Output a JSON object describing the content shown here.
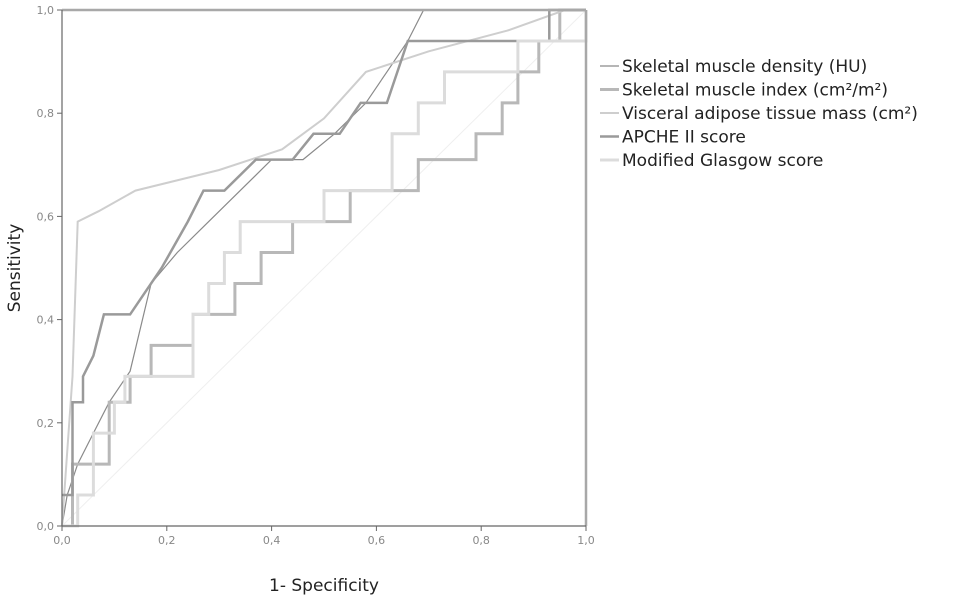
{
  "chart_data": {
    "type": "line",
    "xlabel": "1- Specificity",
    "ylabel": "Sensitivity",
    "xlim": [
      0,
      1
    ],
    "ylim": [
      0,
      1
    ],
    "x_ticks": [
      "0,0",
      "0,2",
      "0,4",
      "0,6",
      "0,8",
      "1,0"
    ],
    "y_ticks": [
      "0,0",
      "0,2",
      "0,4",
      "0,6",
      "0,8",
      "1,0"
    ],
    "grid": false,
    "legend_position": "right",
    "series": [
      {
        "name": "Skeletal muscle density (HU)",
        "color": "#8a8a8a",
        "stroke": 1.2,
        "points": [
          [
            0,
            0
          ],
          [
            0.01,
            0.06
          ],
          [
            0.03,
            0.12
          ],
          [
            0.06,
            0.18
          ],
          [
            0.09,
            0.24
          ],
          [
            0.13,
            0.3
          ],
          [
            0.17,
            0.47
          ],
          [
            0.22,
            0.53
          ],
          [
            0.28,
            0.59
          ],
          [
            0.34,
            0.65
          ],
          [
            0.4,
            0.71
          ],
          [
            0.46,
            0.71
          ],
          [
            0.52,
            0.76
          ],
          [
            0.58,
            0.82
          ],
          [
            0.62,
            0.88
          ],
          [
            0.66,
            0.94
          ],
          [
            0.69,
            1.0
          ],
          [
            1.0,
            1.0
          ]
        ]
      },
      {
        "name": "Skeletal muscle index (cm²/m²)",
        "color": "#b8b8b8",
        "stroke": 3,
        "points": [
          [
            0,
            0
          ],
          [
            0.02,
            0
          ],
          [
            0.02,
            0.12
          ],
          [
            0.09,
            0.12
          ],
          [
            0.09,
            0.24
          ],
          [
            0.13,
            0.24
          ],
          [
            0.13,
            0.29
          ],
          [
            0.17,
            0.29
          ],
          [
            0.17,
            0.35
          ],
          [
            0.25,
            0.35
          ],
          [
            0.25,
            0.41
          ],
          [
            0.33,
            0.41
          ],
          [
            0.33,
            0.47
          ],
          [
            0.38,
            0.47
          ],
          [
            0.38,
            0.53
          ],
          [
            0.44,
            0.53
          ],
          [
            0.44,
            0.59
          ],
          [
            0.55,
            0.59
          ],
          [
            0.55,
            0.65
          ],
          [
            0.68,
            0.65
          ],
          [
            0.68,
            0.71
          ],
          [
            0.79,
            0.71
          ],
          [
            0.79,
            0.76
          ],
          [
            0.84,
            0.76
          ],
          [
            0.84,
            0.82
          ],
          [
            0.87,
            0.82
          ],
          [
            0.87,
            0.88
          ],
          [
            0.91,
            0.88
          ],
          [
            0.91,
            0.94
          ],
          [
            0.95,
            0.94
          ],
          [
            0.95,
            1.0
          ],
          [
            1.0,
            1.0
          ]
        ]
      },
      {
        "name": "Visceral adipose tissue mass (cm²)",
        "color": "#cecece",
        "stroke": 2,
        "points": [
          [
            0,
            0
          ],
          [
            0.02,
            0.29
          ],
          [
            0.03,
            0.59
          ],
          [
            0.07,
            0.61
          ],
          [
            0.14,
            0.65
          ],
          [
            0.3,
            0.69
          ],
          [
            0.42,
            0.73
          ],
          [
            0.5,
            0.79
          ],
          [
            0.58,
            0.88
          ],
          [
            0.7,
            0.92
          ],
          [
            0.85,
            0.96
          ],
          [
            0.96,
            1.0
          ],
          [
            1.0,
            1.0
          ]
        ]
      },
      {
        "name": "APCHE II score",
        "color": "#9a9a9a",
        "stroke": 2.5,
        "points": [
          [
            0,
            0.06
          ],
          [
            0.02,
            0.06
          ],
          [
            0.02,
            0.24
          ],
          [
            0.04,
            0.24
          ],
          [
            0.04,
            0.29
          ],
          [
            0.06,
            0.33
          ],
          [
            0.08,
            0.41
          ],
          [
            0.13,
            0.41
          ],
          [
            0.19,
            0.5
          ],
          [
            0.24,
            0.59
          ],
          [
            0.27,
            0.65
          ],
          [
            0.31,
            0.65
          ],
          [
            0.37,
            0.71
          ],
          [
            0.44,
            0.71
          ],
          [
            0.48,
            0.76
          ],
          [
            0.53,
            0.76
          ],
          [
            0.57,
            0.82
          ],
          [
            0.62,
            0.82
          ],
          [
            0.66,
            0.94
          ],
          [
            0.93,
            0.94
          ],
          [
            0.93,
            1.0
          ],
          [
            1.0,
            1.0
          ]
        ]
      },
      {
        "name": "Modified Glasgow score",
        "color": "#dcdcdc",
        "stroke": 3,
        "points": [
          [
            0,
            0
          ],
          [
            0.03,
            0
          ],
          [
            0.03,
            0.06
          ],
          [
            0.06,
            0.06
          ],
          [
            0.06,
            0.18
          ],
          [
            0.1,
            0.18
          ],
          [
            0.1,
            0.24
          ],
          [
            0.12,
            0.24
          ],
          [
            0.12,
            0.29
          ],
          [
            0.25,
            0.29
          ],
          [
            0.25,
            0.41
          ],
          [
            0.28,
            0.41
          ],
          [
            0.28,
            0.47
          ],
          [
            0.31,
            0.47
          ],
          [
            0.31,
            0.53
          ],
          [
            0.34,
            0.53
          ],
          [
            0.34,
            0.59
          ],
          [
            0.5,
            0.59
          ],
          [
            0.5,
            0.65
          ],
          [
            0.63,
            0.65
          ],
          [
            0.63,
            0.76
          ],
          [
            0.68,
            0.76
          ],
          [
            0.68,
            0.82
          ],
          [
            0.73,
            0.82
          ],
          [
            0.73,
            0.88
          ],
          [
            0.87,
            0.88
          ],
          [
            0.87,
            0.94
          ],
          [
            1.0,
            0.94
          ],
          [
            1.0,
            1.0
          ]
        ]
      }
    ]
  }
}
